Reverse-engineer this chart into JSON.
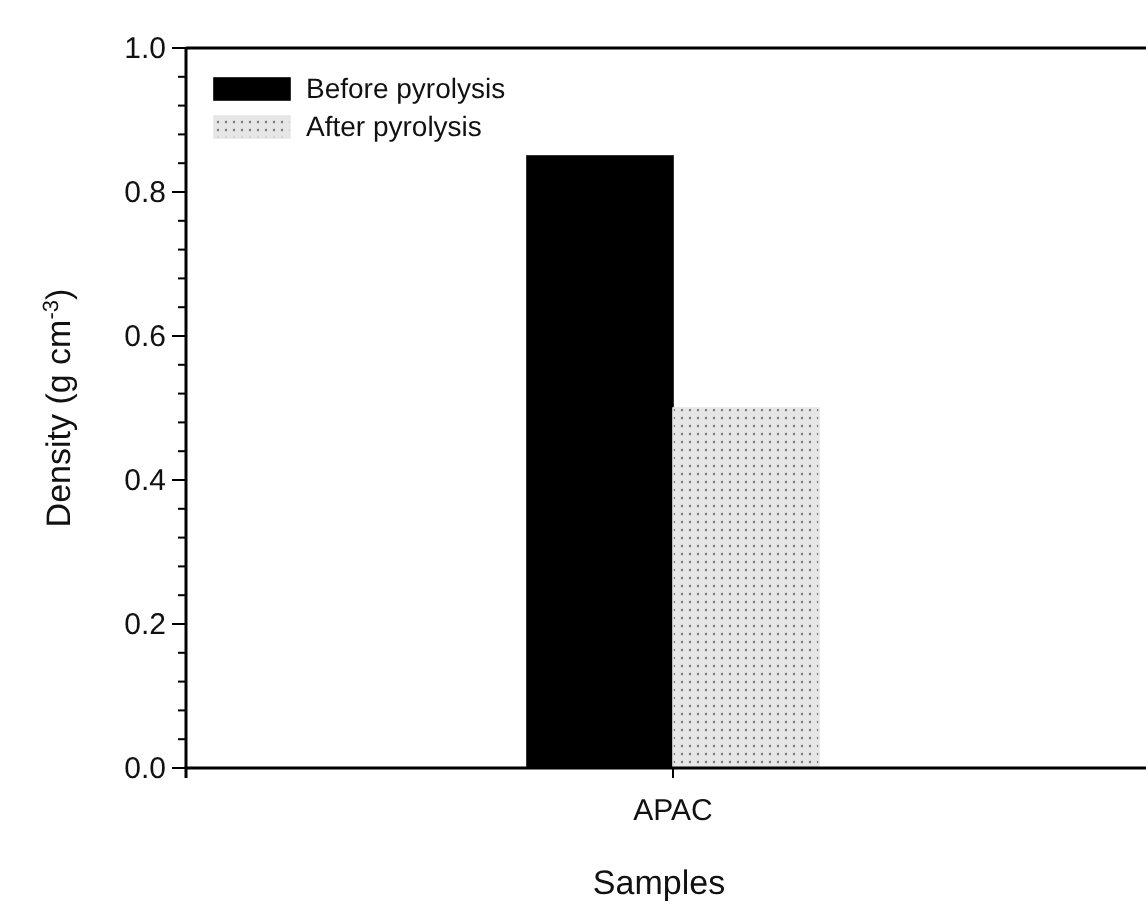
{
  "chart_data": {
    "type": "bar",
    "xlabel": "Samples",
    "ylabel": "Density (g cm$^{-3}$)",
    "categories": [
      "APAC"
    ],
    "series": [
      {
        "name": "Before pyrolysis",
        "color": "#000000",
        "values": [
          0.85
        ]
      },
      {
        "name": "After pyrolysis",
        "color": "#e6e6e6",
        "values": [
          0.5
        ]
      }
    ],
    "ylim": [
      0,
      1
    ],
    "yticks": [
      {
        "value": 0,
        "label": "0.0"
      },
      {
        "value": 0.04,
        "label": null
      },
      {
        "value": 0.08,
        "label": null
      },
      {
        "value": 0.12,
        "label": null
      },
      {
        "value": 0.16,
        "label": null
      },
      0.2,
      {
        "value": 0.24,
        "label": null
      },
      {
        "value": 0.28,
        "label": null
      },
      {
        "value": 0.32,
        "label": null
      },
      {
        "value": 0.36,
        "label": null
      },
      0.4,
      {
        "value": 0.44,
        "label": null
      },
      {
        "value": 0.48,
        "label": null
      },
      {
        "value": 0.52,
        "label": null
      },
      {
        "value": 0.56,
        "label": null
      },
      0.6,
      {
        "value": 0.64,
        "label": null
      },
      {
        "value": 0.68,
        "label": null
      },
      {
        "value": 0.72,
        "label": null
      },
      {
        "value": 0.76,
        "label": null
      },
      0.8,
      {
        "value": 0.84,
        "label": null
      },
      {
        "value": 0.88,
        "label": null
      },
      {
        "value": 0.92,
        "label": null
      },
      {
        "value": 0.96,
        "label": null
      },
      {
        "value": 1,
        "label": "1.0"
      }
    ],
    "legend": "top left",
    "grid": false
  }
}
